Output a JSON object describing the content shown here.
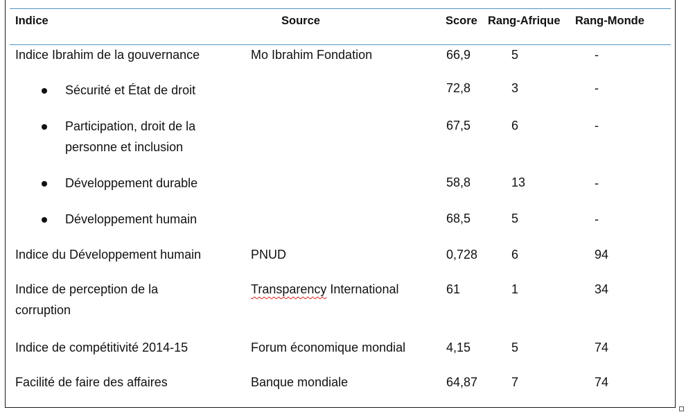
{
  "table": {
    "headers": {
      "indice": "Indice",
      "source": "Source",
      "score": "Score",
      "rang_afrique": "Rang-Afrique",
      "rang_monde": "Rang-Monde"
    },
    "rows": [
      {
        "indice": "Indice Ibrahim de la gouvernance",
        "source": "Mo Ibrahim Fondation",
        "score": "66,9",
        "rang_afrique": "5",
        "rang_monde": "-"
      },
      {
        "indice": "Sécurité et État de droit",
        "source": "",
        "score": "72,8",
        "rang_afrique": "3",
        "rang_monde": "-"
      },
      {
        "indice": "Participation, droit de la personne et inclusion",
        "source": "",
        "score": "67,5",
        "rang_afrique": "6",
        "rang_monde": "-"
      },
      {
        "indice": "Développement durable",
        "source": "",
        "score": "58,8",
        "rang_afrique": "13",
        "rang_monde": "-"
      },
      {
        "indice": "Développement humain",
        "source": "",
        "score": "68,5",
        "rang_afrique": "5",
        "rang_monde": "-"
      },
      {
        "indice": "Indice du Développement humain",
        "source": "PNUD",
        "score": "0,728",
        "rang_afrique": "6",
        "rang_monde": "94"
      },
      {
        "indice": "Indice de perception de la corruption",
        "source_part1": "Transparency",
        "source_part2": " International",
        "score": "61",
        "rang_afrique": "1",
        "rang_monde": "34"
      },
      {
        "indice": "Indice de compétitivité 2014-15",
        "source": "Forum économique mondial",
        "score": "4,15",
        "rang_afrique": "5",
        "rang_monde": "74"
      },
      {
        "indice": "Facilité de faire des affaires",
        "source": "Banque mondiale",
        "score": "64,87",
        "rang_afrique": "7",
        "rang_monde": "74"
      }
    ]
  },
  "colors": {
    "rule": "#4f93c4",
    "spellcheck": "#d32020",
    "text": "#111111"
  }
}
